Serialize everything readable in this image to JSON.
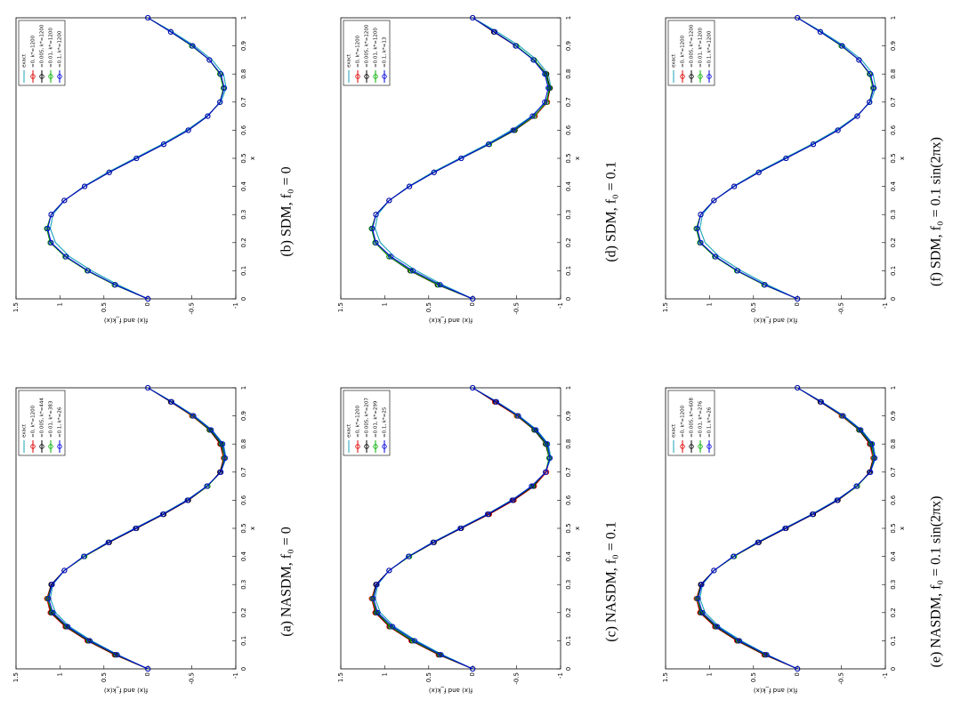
{
  "chart_data": [
    {
      "type": "line",
      "caption": "(a) NASDM,  f₀ = 0",
      "xlabel": "x",
      "ylabel": "f(x) and f_k(x)",
      "x": [
        0,
        0.05,
        0.1,
        0.15,
        0.2,
        0.25,
        0.3,
        0.35,
        0.4,
        0.45,
        0.5,
        0.55,
        0.6,
        0.65,
        0.7,
        0.75,
        0.8,
        0.85,
        0.9,
        0.95,
        1
      ],
      "xlim": [
        0,
        1
      ],
      "xticks": [
        0,
        0.1,
        0.2,
        0.3,
        0.4,
        0.5,
        0.6,
        0.7,
        0.8,
        0.9,
        1
      ],
      "ylim": [
        -1,
        1.5
      ],
      "yticks": [
        -1,
        -0.5,
        0,
        0.5,
        1,
        1.5
      ],
      "series": [
        {
          "name": "exact",
          "color": "#1aa3b8",
          "values": [
            0,
            0.34,
            0.64,
            0.89,
            1.05,
            1.11,
            1.08,
            0.95,
            0.73,
            0.46,
            0.15,
            -0.16,
            -0.44,
            -0.67,
            -0.83,
            -0.89,
            -0.86,
            -0.73,
            -0.53,
            -0.28,
            0
          ]
        },
        {
          "name": "=0, k*=1200",
          "color": "#e00000",
          "values": [
            0,
            0.38,
            0.69,
            0.94,
            1.11,
            1.15,
            1.1,
            0.95,
            0.72,
            0.44,
            0.13,
            -0.18,
            -0.46,
            -0.68,
            -0.82,
            -0.86,
            -0.82,
            -0.7,
            -0.5,
            -0.26,
            0
          ]
        },
        {
          "name": "=0.005, k*=444",
          "color": "#000000",
          "values": [
            0,
            0.37,
            0.68,
            0.93,
            1.1,
            1.14,
            1.1,
            0.95,
            0.72,
            0.44,
            0.13,
            -0.18,
            -0.46,
            -0.68,
            -0.82,
            -0.87,
            -0.83,
            -0.7,
            -0.51,
            -0.26,
            0
          ]
        },
        {
          "name": "=0.01, k*=383",
          "color": "#00b000",
          "values": [
            0,
            0.36,
            0.67,
            0.92,
            1.09,
            1.14,
            1.09,
            0.95,
            0.72,
            0.45,
            0.14,
            -0.17,
            -0.45,
            -0.68,
            -0.83,
            -0.87,
            -0.84,
            -0.71,
            -0.51,
            -0.27,
            0
          ]
        },
        {
          "name": "=0.1, k*=26",
          "color": "#0000e0",
          "values": [
            0,
            0.35,
            0.66,
            0.91,
            1.08,
            1.13,
            1.09,
            0.95,
            0.73,
            0.45,
            0.14,
            -0.17,
            -0.45,
            -0.67,
            -0.83,
            -0.88,
            -0.85,
            -0.72,
            -0.52,
            -0.27,
            0
          ]
        }
      ]
    },
    {
      "type": "line",
      "caption": "(b) SDM,  f₀ = 0",
      "xlabel": "x",
      "ylabel": "f(x) and f_k(x)",
      "x": [
        0,
        0.05,
        0.1,
        0.15,
        0.2,
        0.25,
        0.3,
        0.35,
        0.4,
        0.45,
        0.5,
        0.55,
        0.6,
        0.65,
        0.7,
        0.75,
        0.8,
        0.85,
        0.9,
        0.95,
        1
      ],
      "xlim": [
        0,
        1
      ],
      "xticks": [
        0,
        0.1,
        0.2,
        0.3,
        0.4,
        0.5,
        0.6,
        0.7,
        0.8,
        0.9,
        1
      ],
      "ylim": [
        -1,
        1.5
      ],
      "yticks": [
        -1,
        -0.5,
        0,
        0.5,
        1,
        1.5
      ],
      "series": [
        {
          "name": "exact",
          "color": "#1aa3b8",
          "values": [
            0,
            0.34,
            0.64,
            0.89,
            1.05,
            1.11,
            1.08,
            0.95,
            0.73,
            0.46,
            0.15,
            -0.16,
            -0.44,
            -0.67,
            -0.83,
            -0.89,
            -0.86,
            -0.73,
            -0.53,
            -0.28,
            0
          ]
        },
        {
          "name": "=0, k*=1200",
          "color": "#e00000",
          "values": [
            0,
            0.38,
            0.69,
            0.94,
            1.11,
            1.15,
            1.1,
            0.95,
            0.72,
            0.44,
            0.13,
            -0.18,
            -0.46,
            -0.68,
            -0.82,
            -0.86,
            -0.82,
            -0.7,
            -0.5,
            -0.26,
            0
          ]
        },
        {
          "name": "=0.005, k*=1200",
          "color": "#000000",
          "values": [
            0,
            0.38,
            0.69,
            0.94,
            1.11,
            1.15,
            1.1,
            0.95,
            0.72,
            0.44,
            0.13,
            -0.18,
            -0.46,
            -0.68,
            -0.82,
            -0.86,
            -0.82,
            -0.7,
            -0.5,
            -0.26,
            0
          ]
        },
        {
          "name": "=0.01, k*=1200",
          "color": "#00b000",
          "values": [
            0,
            0.38,
            0.69,
            0.94,
            1.11,
            1.15,
            1.1,
            0.95,
            0.72,
            0.44,
            0.13,
            -0.18,
            -0.46,
            -0.68,
            -0.82,
            -0.86,
            -0.82,
            -0.7,
            -0.5,
            -0.26,
            0
          ]
        },
        {
          "name": "=0.1, k*=1200",
          "color": "#0000e0",
          "values": [
            0,
            0.37,
            0.68,
            0.93,
            1.1,
            1.14,
            1.1,
            0.95,
            0.72,
            0.44,
            0.13,
            -0.18,
            -0.46,
            -0.68,
            -0.82,
            -0.87,
            -0.83,
            -0.7,
            -0.51,
            -0.26,
            0
          ]
        }
      ]
    },
    {
      "type": "line",
      "caption": "(c) NASDM,  f₀ = 0.1",
      "xlabel": "x",
      "ylabel": "f(x) and f_k(x)",
      "x": [
        0,
        0.05,
        0.1,
        0.15,
        0.2,
        0.25,
        0.3,
        0.35,
        0.4,
        0.45,
        0.5,
        0.55,
        0.6,
        0.65,
        0.7,
        0.75,
        0.8,
        0.85,
        0.9,
        0.95,
        1
      ],
      "xlim": [
        0,
        1
      ],
      "xticks": [
        0,
        0.1,
        0.2,
        0.3,
        0.4,
        0.5,
        0.6,
        0.7,
        0.8,
        0.9,
        1
      ],
      "ylim": [
        -1,
        1.5
      ],
      "yticks": [
        -1,
        -0.5,
        0,
        0.5,
        1,
        1.5
      ],
      "series": [
        {
          "name": "exact",
          "color": "#1aa3b8",
          "values": [
            0,
            0.34,
            0.64,
            0.89,
            1.05,
            1.11,
            1.08,
            0.95,
            0.73,
            0.46,
            0.15,
            -0.16,
            -0.44,
            -0.67,
            -0.83,
            -0.89,
            -0.86,
            -0.73,
            -0.53,
            -0.28,
            0
          ]
        },
        {
          "name": "=0, k*=1200",
          "color": "#e00000",
          "values": [
            0,
            0.39,
            0.7,
            0.95,
            1.11,
            1.15,
            1.1,
            0.95,
            0.72,
            0.44,
            0.13,
            -0.19,
            -0.47,
            -0.7,
            -0.84,
            -0.87,
            -0.83,
            -0.7,
            -0.5,
            -0.25,
            0
          ]
        },
        {
          "name": "=0.005, k*=207",
          "color": "#000000",
          "values": [
            0,
            0.38,
            0.69,
            0.94,
            1.1,
            1.14,
            1.1,
            0.95,
            0.72,
            0.44,
            0.13,
            -0.18,
            -0.46,
            -0.69,
            -0.83,
            -0.87,
            -0.83,
            -0.7,
            -0.51,
            -0.26,
            0
          ]
        },
        {
          "name": "=0.01, k*=299",
          "color": "#00b000",
          "values": [
            0,
            0.37,
            0.68,
            0.93,
            1.09,
            1.14,
            1.09,
            0.95,
            0.72,
            0.45,
            0.14,
            -0.17,
            -0.45,
            -0.68,
            -0.83,
            -0.87,
            -0.84,
            -0.71,
            -0.51,
            -0.27,
            0
          ]
        },
        {
          "name": "=0.1, k*=25",
          "color": "#0000e0",
          "values": [
            0,
            0.36,
            0.66,
            0.91,
            1.08,
            1.13,
            1.09,
            0.95,
            0.73,
            0.45,
            0.14,
            -0.17,
            -0.45,
            -0.67,
            -0.83,
            -0.88,
            -0.85,
            -0.72,
            -0.52,
            -0.27,
            0
          ]
        }
      ]
    },
    {
      "type": "line",
      "caption": "(d) SDM,  f₀ = 0.1",
      "xlabel": "x",
      "ylabel": "f(x) and f_k(x)",
      "x": [
        0,
        0.05,
        0.1,
        0.15,
        0.2,
        0.25,
        0.3,
        0.35,
        0.4,
        0.45,
        0.5,
        0.55,
        0.6,
        0.65,
        0.7,
        0.75,
        0.8,
        0.85,
        0.9,
        0.95,
        1
      ],
      "xlim": [
        0,
        1
      ],
      "xticks": [
        0,
        0.1,
        0.2,
        0.3,
        0.4,
        0.5,
        0.6,
        0.7,
        0.8,
        0.9,
        1
      ],
      "ylim": [
        -1,
        1.5
      ],
      "yticks": [
        -1,
        -0.5,
        0,
        0.5,
        1,
        1.5
      ],
      "series": [
        {
          "name": "exact",
          "color": "#1aa3b8",
          "values": [
            0,
            0.34,
            0.64,
            0.89,
            1.05,
            1.11,
            1.08,
            0.95,
            0.73,
            0.46,
            0.15,
            -0.16,
            -0.44,
            -0.67,
            -0.83,
            -0.89,
            -0.86,
            -0.73,
            -0.53,
            -0.28,
            0
          ]
        },
        {
          "name": "=0, k*=1200",
          "color": "#e00000",
          "values": [
            0,
            0.4,
            0.71,
            0.95,
            1.11,
            1.15,
            1.1,
            0.95,
            0.72,
            0.44,
            0.13,
            -0.19,
            -0.48,
            -0.71,
            -0.85,
            -0.88,
            -0.84,
            -0.7,
            -0.49,
            -0.24,
            0
          ]
        },
        {
          "name": "=0.005, k*=1200",
          "color": "#000000",
          "values": [
            0,
            0.4,
            0.71,
            0.95,
            1.11,
            1.15,
            1.1,
            0.95,
            0.72,
            0.44,
            0.13,
            -0.19,
            -0.48,
            -0.7,
            -0.84,
            -0.88,
            -0.84,
            -0.7,
            -0.49,
            -0.24,
            0
          ]
        },
        {
          "name": "=0.01, k*=1200",
          "color": "#00b000",
          "values": [
            0,
            0.39,
            0.7,
            0.95,
            1.11,
            1.15,
            1.1,
            0.95,
            0.72,
            0.44,
            0.13,
            -0.19,
            -0.47,
            -0.7,
            -0.84,
            -0.87,
            -0.83,
            -0.7,
            -0.5,
            -0.25,
            0
          ]
        },
        {
          "name": "=0.1, k*=13",
          "color": "#0000e0",
          "values": [
            0,
            0.37,
            0.68,
            0.93,
            1.1,
            1.14,
            1.1,
            0.95,
            0.72,
            0.44,
            0.13,
            -0.18,
            -0.46,
            -0.68,
            -0.82,
            -0.86,
            -0.82,
            -0.69,
            -0.49,
            -0.25,
            0
          ]
        }
      ]
    },
    {
      "type": "line",
      "caption": "(e) NASDM,  f₀ = 0.1 sin(2πx)",
      "xlabel": "x",
      "ylabel": "f(x) and f_k(x)",
      "x": [
        0,
        0.05,
        0.1,
        0.15,
        0.2,
        0.25,
        0.3,
        0.35,
        0.4,
        0.45,
        0.5,
        0.55,
        0.6,
        0.65,
        0.7,
        0.75,
        0.8,
        0.85,
        0.9,
        0.95,
        1
      ],
      "xlim": [
        0,
        1
      ],
      "xticks": [
        0,
        0.1,
        0.2,
        0.3,
        0.4,
        0.5,
        0.6,
        0.7,
        0.8,
        0.9,
        1
      ],
      "ylim": [
        -1,
        1.5
      ],
      "yticks": [
        -1,
        -0.5,
        0,
        0.5,
        1,
        1.5
      ],
      "series": [
        {
          "name": "exact",
          "color": "#1aa3b8",
          "values": [
            0,
            0.34,
            0.64,
            0.89,
            1.05,
            1.11,
            1.08,
            0.95,
            0.73,
            0.46,
            0.15,
            -0.16,
            -0.44,
            -0.67,
            -0.83,
            -0.89,
            -0.86,
            -0.73,
            -0.53,
            -0.28,
            0
          ]
        },
        {
          "name": "=0, k*=1200",
          "color": "#e00000",
          "values": [
            0,
            0.38,
            0.69,
            0.94,
            1.11,
            1.15,
            1.1,
            0.95,
            0.72,
            0.44,
            0.13,
            -0.18,
            -0.46,
            -0.68,
            -0.82,
            -0.86,
            -0.82,
            -0.7,
            -0.5,
            -0.26,
            0
          ]
        },
        {
          "name": "=0.005, k*=608",
          "color": "#000000",
          "values": [
            0,
            0.37,
            0.68,
            0.93,
            1.1,
            1.14,
            1.1,
            0.95,
            0.72,
            0.44,
            0.13,
            -0.18,
            -0.46,
            -0.68,
            -0.82,
            -0.87,
            -0.83,
            -0.7,
            -0.51,
            -0.26,
            0
          ]
        },
        {
          "name": "=0.01, k*=276",
          "color": "#00b000",
          "values": [
            0,
            0.36,
            0.67,
            0.92,
            1.09,
            1.14,
            1.09,
            0.95,
            0.72,
            0.45,
            0.14,
            -0.17,
            -0.45,
            -0.68,
            -0.83,
            -0.87,
            -0.84,
            -0.71,
            -0.51,
            -0.27,
            0
          ]
        },
        {
          "name": "=0.1, k*=26",
          "color": "#0000e0",
          "values": [
            0,
            0.35,
            0.66,
            0.91,
            1.08,
            1.13,
            1.09,
            0.95,
            0.73,
            0.45,
            0.14,
            -0.17,
            -0.45,
            -0.67,
            -0.83,
            -0.88,
            -0.85,
            -0.72,
            -0.52,
            -0.27,
            0
          ]
        }
      ]
    },
    {
      "type": "line",
      "caption": "(f) SDM,  f₀ = 0.1 sin(2πx)",
      "xlabel": "x",
      "ylabel": "f(x) and f_k(x)",
      "x": [
        0,
        0.05,
        0.1,
        0.15,
        0.2,
        0.25,
        0.3,
        0.35,
        0.4,
        0.45,
        0.5,
        0.55,
        0.6,
        0.65,
        0.7,
        0.75,
        0.8,
        0.85,
        0.9,
        0.95,
        1
      ],
      "xlim": [
        0,
        1
      ],
      "xticks": [
        0,
        0.1,
        0.2,
        0.3,
        0.4,
        0.5,
        0.6,
        0.7,
        0.8,
        0.9,
        1
      ],
      "ylim": [
        -1,
        1.5
      ],
      "yticks": [
        -1,
        -0.5,
        0,
        0.5,
        1,
        1.5
      ],
      "series": [
        {
          "name": "exact",
          "color": "#1aa3b8",
          "values": [
            0,
            0.34,
            0.64,
            0.89,
            1.05,
            1.11,
            1.08,
            0.95,
            0.73,
            0.46,
            0.15,
            -0.16,
            -0.44,
            -0.67,
            -0.83,
            -0.89,
            -0.86,
            -0.73,
            -0.53,
            -0.28,
            0
          ]
        },
        {
          "name": "=0, k*=1200",
          "color": "#e00000",
          "values": [
            0,
            0.38,
            0.69,
            0.94,
            1.11,
            1.15,
            1.1,
            0.95,
            0.72,
            0.44,
            0.13,
            -0.18,
            -0.46,
            -0.68,
            -0.82,
            -0.86,
            -0.82,
            -0.7,
            -0.5,
            -0.26,
            0
          ]
        },
        {
          "name": "=0.005, k*=1200",
          "color": "#000000",
          "values": [
            0,
            0.38,
            0.69,
            0.94,
            1.11,
            1.15,
            1.1,
            0.95,
            0.72,
            0.44,
            0.13,
            -0.18,
            -0.46,
            -0.68,
            -0.82,
            -0.86,
            -0.82,
            -0.7,
            -0.5,
            -0.26,
            0
          ]
        },
        {
          "name": "=0.01, k*=1200",
          "color": "#00b000",
          "values": [
            0,
            0.38,
            0.69,
            0.94,
            1.11,
            1.15,
            1.1,
            0.95,
            0.72,
            0.44,
            0.13,
            -0.18,
            -0.46,
            -0.68,
            -0.82,
            -0.86,
            -0.82,
            -0.7,
            -0.5,
            -0.26,
            0
          ]
        },
        {
          "name": "=0.1, k*=1200",
          "color": "#0000e0",
          "values": [
            0,
            0.37,
            0.68,
            0.93,
            1.1,
            1.14,
            1.1,
            0.95,
            0.72,
            0.44,
            0.13,
            -0.18,
            -0.46,
            -0.68,
            -0.82,
            -0.87,
            -0.83,
            -0.7,
            -0.51,
            -0.26,
            0
          ]
        }
      ]
    }
  ]
}
